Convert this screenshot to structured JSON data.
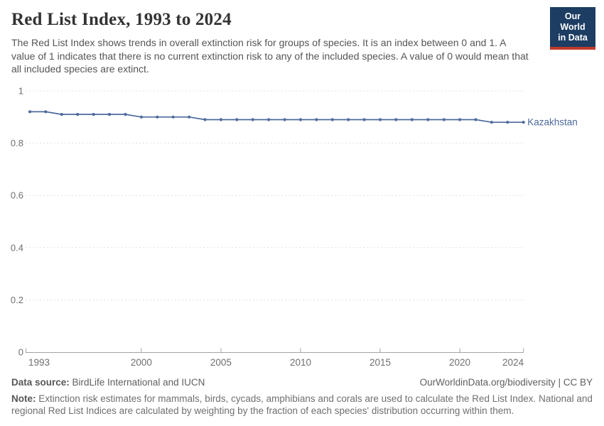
{
  "header": {
    "title": "Red List Index, 1993 to 2024",
    "subtitle": "The Red List Index shows trends in overall extinction risk for groups of species. It is an index between 0 and 1. A value of 1 indicates that there is no current extinction risk to any of the included species. A value of 0 would mean that all included species are extinct.",
    "logo": {
      "line1": "Our World",
      "line2": "in Data",
      "bg_color": "#1D3D63",
      "accent_color": "#C0392B"
    }
  },
  "chart_data": {
    "type": "line",
    "title": "Red List Index, 1993 to 2024",
    "x": [
      1993,
      1994,
      1995,
      1996,
      1997,
      1998,
      1999,
      2000,
      2001,
      2002,
      2003,
      2004,
      2005,
      2006,
      2007,
      2008,
      2009,
      2010,
      2011,
      2012,
      2013,
      2014,
      2015,
      2016,
      2017,
      2018,
      2019,
      2020,
      2021,
      2022,
      2023,
      2024
    ],
    "series": [
      {
        "name": "Kazakhstan",
        "color": "#4C6A9C",
        "values": [
          0.92,
          0.92,
          0.91,
          0.91,
          0.91,
          0.91,
          0.91,
          0.9,
          0.9,
          0.9,
          0.9,
          0.89,
          0.89,
          0.89,
          0.89,
          0.89,
          0.89,
          0.89,
          0.89,
          0.89,
          0.89,
          0.89,
          0.89,
          0.89,
          0.89,
          0.89,
          0.89,
          0.89,
          0.89,
          0.88,
          0.88,
          0.88
        ]
      }
    ],
    "xlabel": "",
    "ylabel": "",
    "ylim": [
      0,
      1
    ],
    "yticks": [
      0,
      0.2,
      0.4,
      0.6,
      0.8,
      1
    ],
    "xticks": [
      1993,
      2000,
      2005,
      2010,
      2015,
      2020,
      2024
    ],
    "grid": "horizontal-dashed",
    "legend_position": "end-of-line",
    "grid_color": "#e0e0e0",
    "axis_color": "#a3a3a3",
    "tick_label_color": "#6e6e6e"
  },
  "footer": {
    "datasource_label": "Data source:",
    "datasource_value": " BirdLife International and IUCN",
    "attribution": "OurWorldinData.org/biodiversity | CC BY",
    "note_label": "Note:",
    "note_value": " Extinction risk estimates for mammals, birds, cycads, amphibians and corals are used to calculate the Red List Index. National and regional Red List Indices are calculated by weighting by the fraction of each species' distribution occurring within them."
  }
}
